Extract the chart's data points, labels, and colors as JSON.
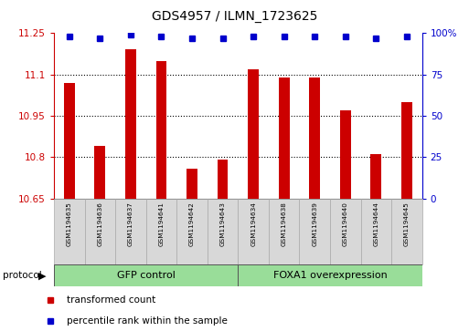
{
  "title": "GDS4957 / ILMN_1723625",
  "samples": [
    "GSM1194635",
    "GSM1194636",
    "GSM1194637",
    "GSM1194641",
    "GSM1194642",
    "GSM1194643",
    "GSM1194634",
    "GSM1194638",
    "GSM1194639",
    "GSM1194640",
    "GSM1194644",
    "GSM1194645"
  ],
  "bar_values": [
    11.07,
    10.84,
    11.19,
    11.15,
    10.76,
    10.79,
    11.12,
    11.09,
    11.09,
    10.97,
    10.81,
    11.0
  ],
  "percentile_values": [
    98,
    97,
    99,
    98,
    97,
    97,
    98,
    98,
    98,
    98,
    97,
    98
  ],
  "bar_color": "#cc0000",
  "dot_color": "#0000cc",
  "ylim_left": [
    10.65,
    11.25
  ],
  "ylim_right": [
    0,
    100
  ],
  "yticks_left": [
    10.65,
    10.8,
    10.95,
    11.1,
    11.25
  ],
  "yticks_right": [
    0,
    25,
    50,
    75,
    100
  ],
  "ytick_labels_left": [
    "10.65",
    "10.8",
    "10.95",
    "11.1",
    "11.25"
  ],
  "ytick_labels_right": [
    "0",
    "25",
    "50",
    "75",
    "100%"
  ],
  "grid_values": [
    10.8,
    10.95,
    11.1
  ],
  "group1_label": "GFP control",
  "group2_label": "FOXA1 overexpression",
  "group1_count": 6,
  "group2_count": 6,
  "protocol_label": "protocol",
  "legend1": "transformed count",
  "legend2": "percentile rank within the sample",
  "bg_color": "#ffffff",
  "bar_area_bg": "#ffffff",
  "tick_color_left": "#cc0000",
  "tick_color_right": "#0000cc",
  "bar_width": 0.35
}
